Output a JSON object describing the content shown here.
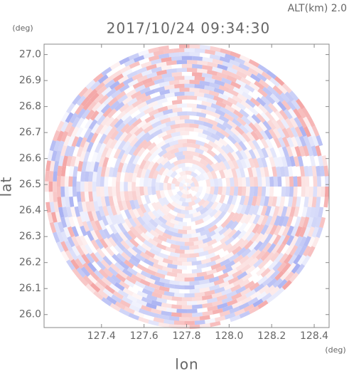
{
  "chart_data": {
    "type": "radar-ppi",
    "title": "2017/10/24 09:34:30",
    "subtitle": "ALT(km) 2.0",
    "x_label": "lon",
    "y_label": "lat",
    "x_unit": "(deg)",
    "y_unit": "(deg)",
    "xlim": [
      127.13,
      128.47
    ],
    "ylim": [
      25.95,
      27.04
    ],
    "xticks": [
      127.4,
      127.6,
      127.8,
      {
        "value": 128.0,
        "label": "128.0"
      },
      128.2,
      128.4
    ],
    "yticks": [
      {
        "value": 26.0,
        "label": "26.0"
      },
      26.1,
      26.2,
      26.3,
      26.4,
      26.5,
      26.6,
      26.7,
      26.8,
      26.9,
      {
        "value": 27.0,
        "label": "27.0"
      }
    ],
    "colors": [
      "#f4a6a6",
      "#a9b1f2"
    ]
  }
}
